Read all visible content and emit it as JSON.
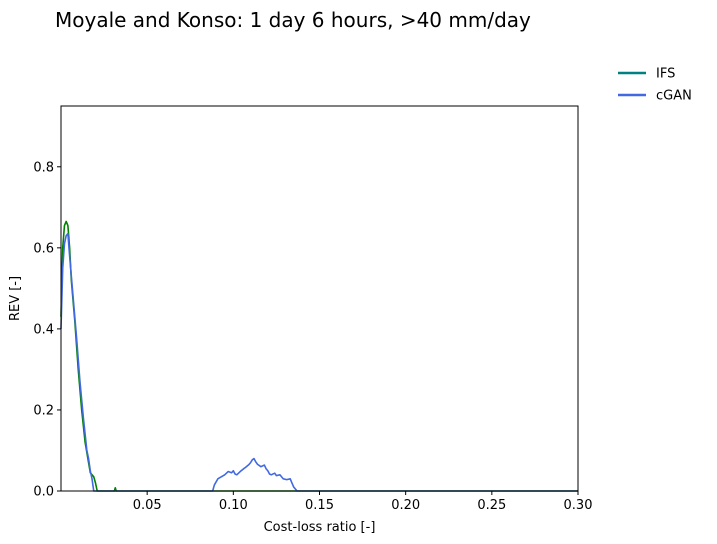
{
  "chart_data": {
    "type": "line",
    "title": "Moyale and Konso: 1 day 6 hours, >40 mm/day",
    "xlabel": "Cost-loss ratio [-]",
    "ylabel": "REV [-]",
    "xlim": [
      0.0,
      0.3
    ],
    "ylim": [
      0.0,
      0.95
    ],
    "xticks": [
      0.05,
      0.1,
      0.15,
      0.2,
      0.25,
      0.3
    ],
    "xtick_labels": [
      "0.05",
      "0.10",
      "0.15",
      "0.20",
      "0.25",
      "0.30"
    ],
    "yticks": [
      0.0,
      0.2,
      0.4,
      0.6,
      0.8
    ],
    "ytick_labels": [
      "0.0",
      "0.2",
      "0.4",
      "0.6",
      "0.8"
    ],
    "grid": false,
    "legend_position": "outside-top-right",
    "legend": [
      {
        "name": "IFS",
        "color": "#008080"
      },
      {
        "name": "cGAN",
        "color": "#4169e1"
      }
    ],
    "series": [
      {
        "name": "IFS",
        "color": "#008000",
        "points": [
          [
            0.0,
            0.43
          ],
          [
            0.001,
            0.6
          ],
          [
            0.002,
            0.655
          ],
          [
            0.003,
            0.665
          ],
          [
            0.004,
            0.655
          ],
          [
            0.005,
            0.6
          ],
          [
            0.006,
            0.52
          ],
          [
            0.008,
            0.42
          ],
          [
            0.01,
            0.3
          ],
          [
            0.012,
            0.2
          ],
          [
            0.014,
            0.12
          ],
          [
            0.016,
            0.07
          ],
          [
            0.017,
            0.045
          ],
          [
            0.019,
            0.035
          ],
          [
            0.02,
            0.02
          ],
          [
            0.021,
            0.0
          ],
          [
            0.031,
            0.0
          ],
          [
            0.0315,
            0.008
          ],
          [
            0.032,
            0.0
          ],
          [
            0.3,
            0.0
          ]
        ]
      },
      {
        "name": "cGAN",
        "color": "#4169e1",
        "points": [
          [
            0.0,
            0.4
          ],
          [
            0.001,
            0.55
          ],
          [
            0.002,
            0.61
          ],
          [
            0.003,
            0.63
          ],
          [
            0.004,
            0.635
          ],
          [
            0.005,
            0.58
          ],
          [
            0.007,
            0.48
          ],
          [
            0.009,
            0.38
          ],
          [
            0.011,
            0.27
          ],
          [
            0.013,
            0.18
          ],
          [
            0.015,
            0.1
          ],
          [
            0.016,
            0.08
          ],
          [
            0.017,
            0.05
          ],
          [
            0.018,
            0.03
          ],
          [
            0.019,
            0.0
          ],
          [
            0.088,
            0.0
          ],
          [
            0.089,
            0.015
          ],
          [
            0.091,
            0.03
          ],
          [
            0.093,
            0.035
          ],
          [
            0.095,
            0.04
          ],
          [
            0.097,
            0.048
          ],
          [
            0.099,
            0.045
          ],
          [
            0.1,
            0.05
          ],
          [
            0.101,
            0.042
          ],
          [
            0.102,
            0.04
          ],
          [
            0.104,
            0.048
          ],
          [
            0.106,
            0.055
          ],
          [
            0.107,
            0.058
          ],
          [
            0.109,
            0.065
          ],
          [
            0.11,
            0.07
          ],
          [
            0.111,
            0.077
          ],
          [
            0.112,
            0.08
          ],
          [
            0.113,
            0.072
          ],
          [
            0.114,
            0.066
          ],
          [
            0.116,
            0.06
          ],
          [
            0.117,
            0.062
          ],
          [
            0.118,
            0.064
          ],
          [
            0.119,
            0.055
          ],
          [
            0.12,
            0.05
          ],
          [
            0.121,
            0.042
          ],
          [
            0.122,
            0.04
          ],
          [
            0.124,
            0.044
          ],
          [
            0.125,
            0.038
          ],
          [
            0.127,
            0.04
          ],
          [
            0.129,
            0.03
          ],
          [
            0.131,
            0.028
          ],
          [
            0.133,
            0.03
          ],
          [
            0.134,
            0.02
          ],
          [
            0.135,
            0.01
          ],
          [
            0.136,
            0.005
          ],
          [
            0.137,
            0.0
          ],
          [
            0.3,
            0.0
          ]
        ]
      }
    ]
  }
}
